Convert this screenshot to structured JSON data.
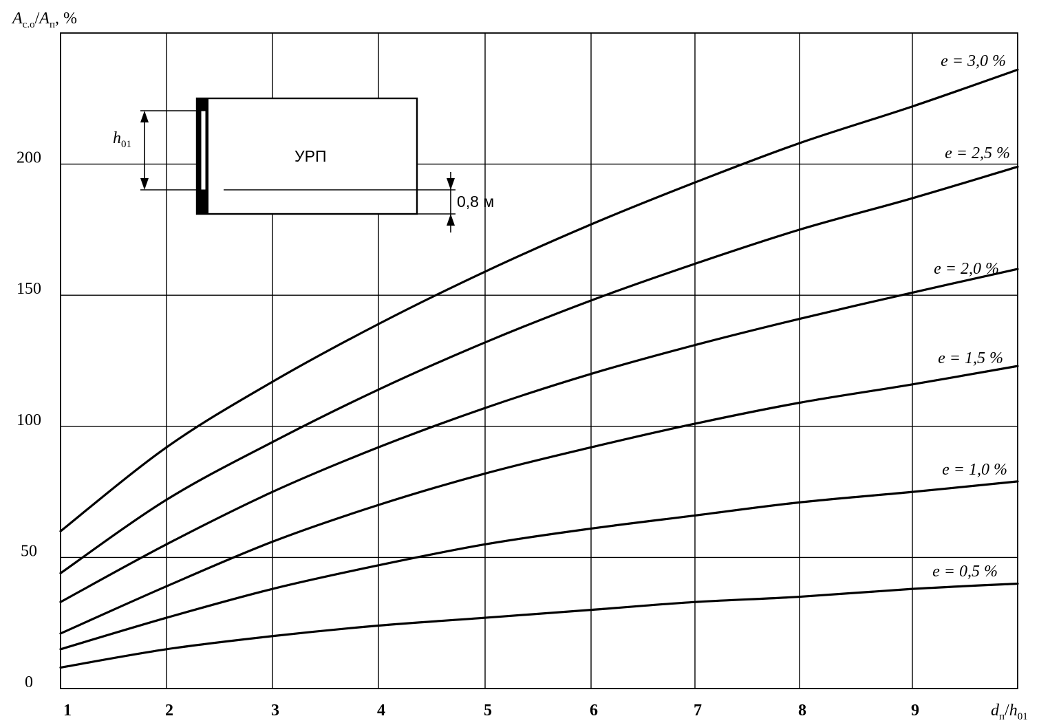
{
  "chart_data": {
    "type": "line",
    "title": "",
    "xlabel": {
      "main": "d",
      "sub": "п",
      "sep": "/",
      "main2": "h",
      "sub2": "01"
    },
    "ylabel": {
      "main": "A",
      "sub": "с.о",
      "sep": "/",
      "main2": "A",
      "sub2": "п",
      "unit": ",  %"
    },
    "xlim": [
      1,
      10
    ],
    "ylim": [
      0,
      250
    ],
    "grid": true,
    "x_ticks": [
      1,
      2,
      3,
      4,
      5,
      6,
      7,
      8,
      9
    ],
    "x_tick_labels": [
      "1",
      "2",
      "3",
      "4",
      "5",
      "6",
      "7",
      "8",
      "9"
    ],
    "y_ticks": [
      0,
      50,
      100,
      150,
      200
    ],
    "y_tick_labels": [
      "0",
      "50",
      "100",
      "150",
      "200"
    ],
    "y_gridlines": [
      50,
      100,
      150,
      200
    ],
    "x": [
      1,
      2,
      3,
      4,
      5,
      6,
      7,
      8,
      9,
      10
    ],
    "series": [
      {
        "name": "e = 3,0 %",
        "values": [
          60,
          92,
          117,
          139,
          159,
          177,
          193,
          208,
          222,
          236
        ]
      },
      {
        "name": "e = 2,5 %",
        "values": [
          44,
          72,
          94,
          114,
          132,
          148,
          162,
          175,
          187,
          199
        ]
      },
      {
        "name": "e = 2,0 %",
        "values": [
          33,
          55,
          75,
          92,
          107,
          120,
          131,
          141,
          151,
          160
        ]
      },
      {
        "name": "e = 1,5 %",
        "values": [
          21,
          39,
          56,
          70,
          82,
          92,
          101,
          109,
          116,
          123
        ]
      },
      {
        "name": "e = 1,0 %",
        "values": [
          15,
          27,
          38,
          47,
          55,
          61,
          66,
          71,
          75,
          79
        ]
      },
      {
        "name": "e = 0,5 %",
        "values": [
          8,
          15,
          20,
          24,
          27,
          30,
          33,
          35,
          38,
          40
        ]
      }
    ],
    "inset": {
      "label": "УРП",
      "dimension_label": "0,8 м",
      "height_label": {
        "main": "h",
        "sub": "01"
      }
    }
  }
}
